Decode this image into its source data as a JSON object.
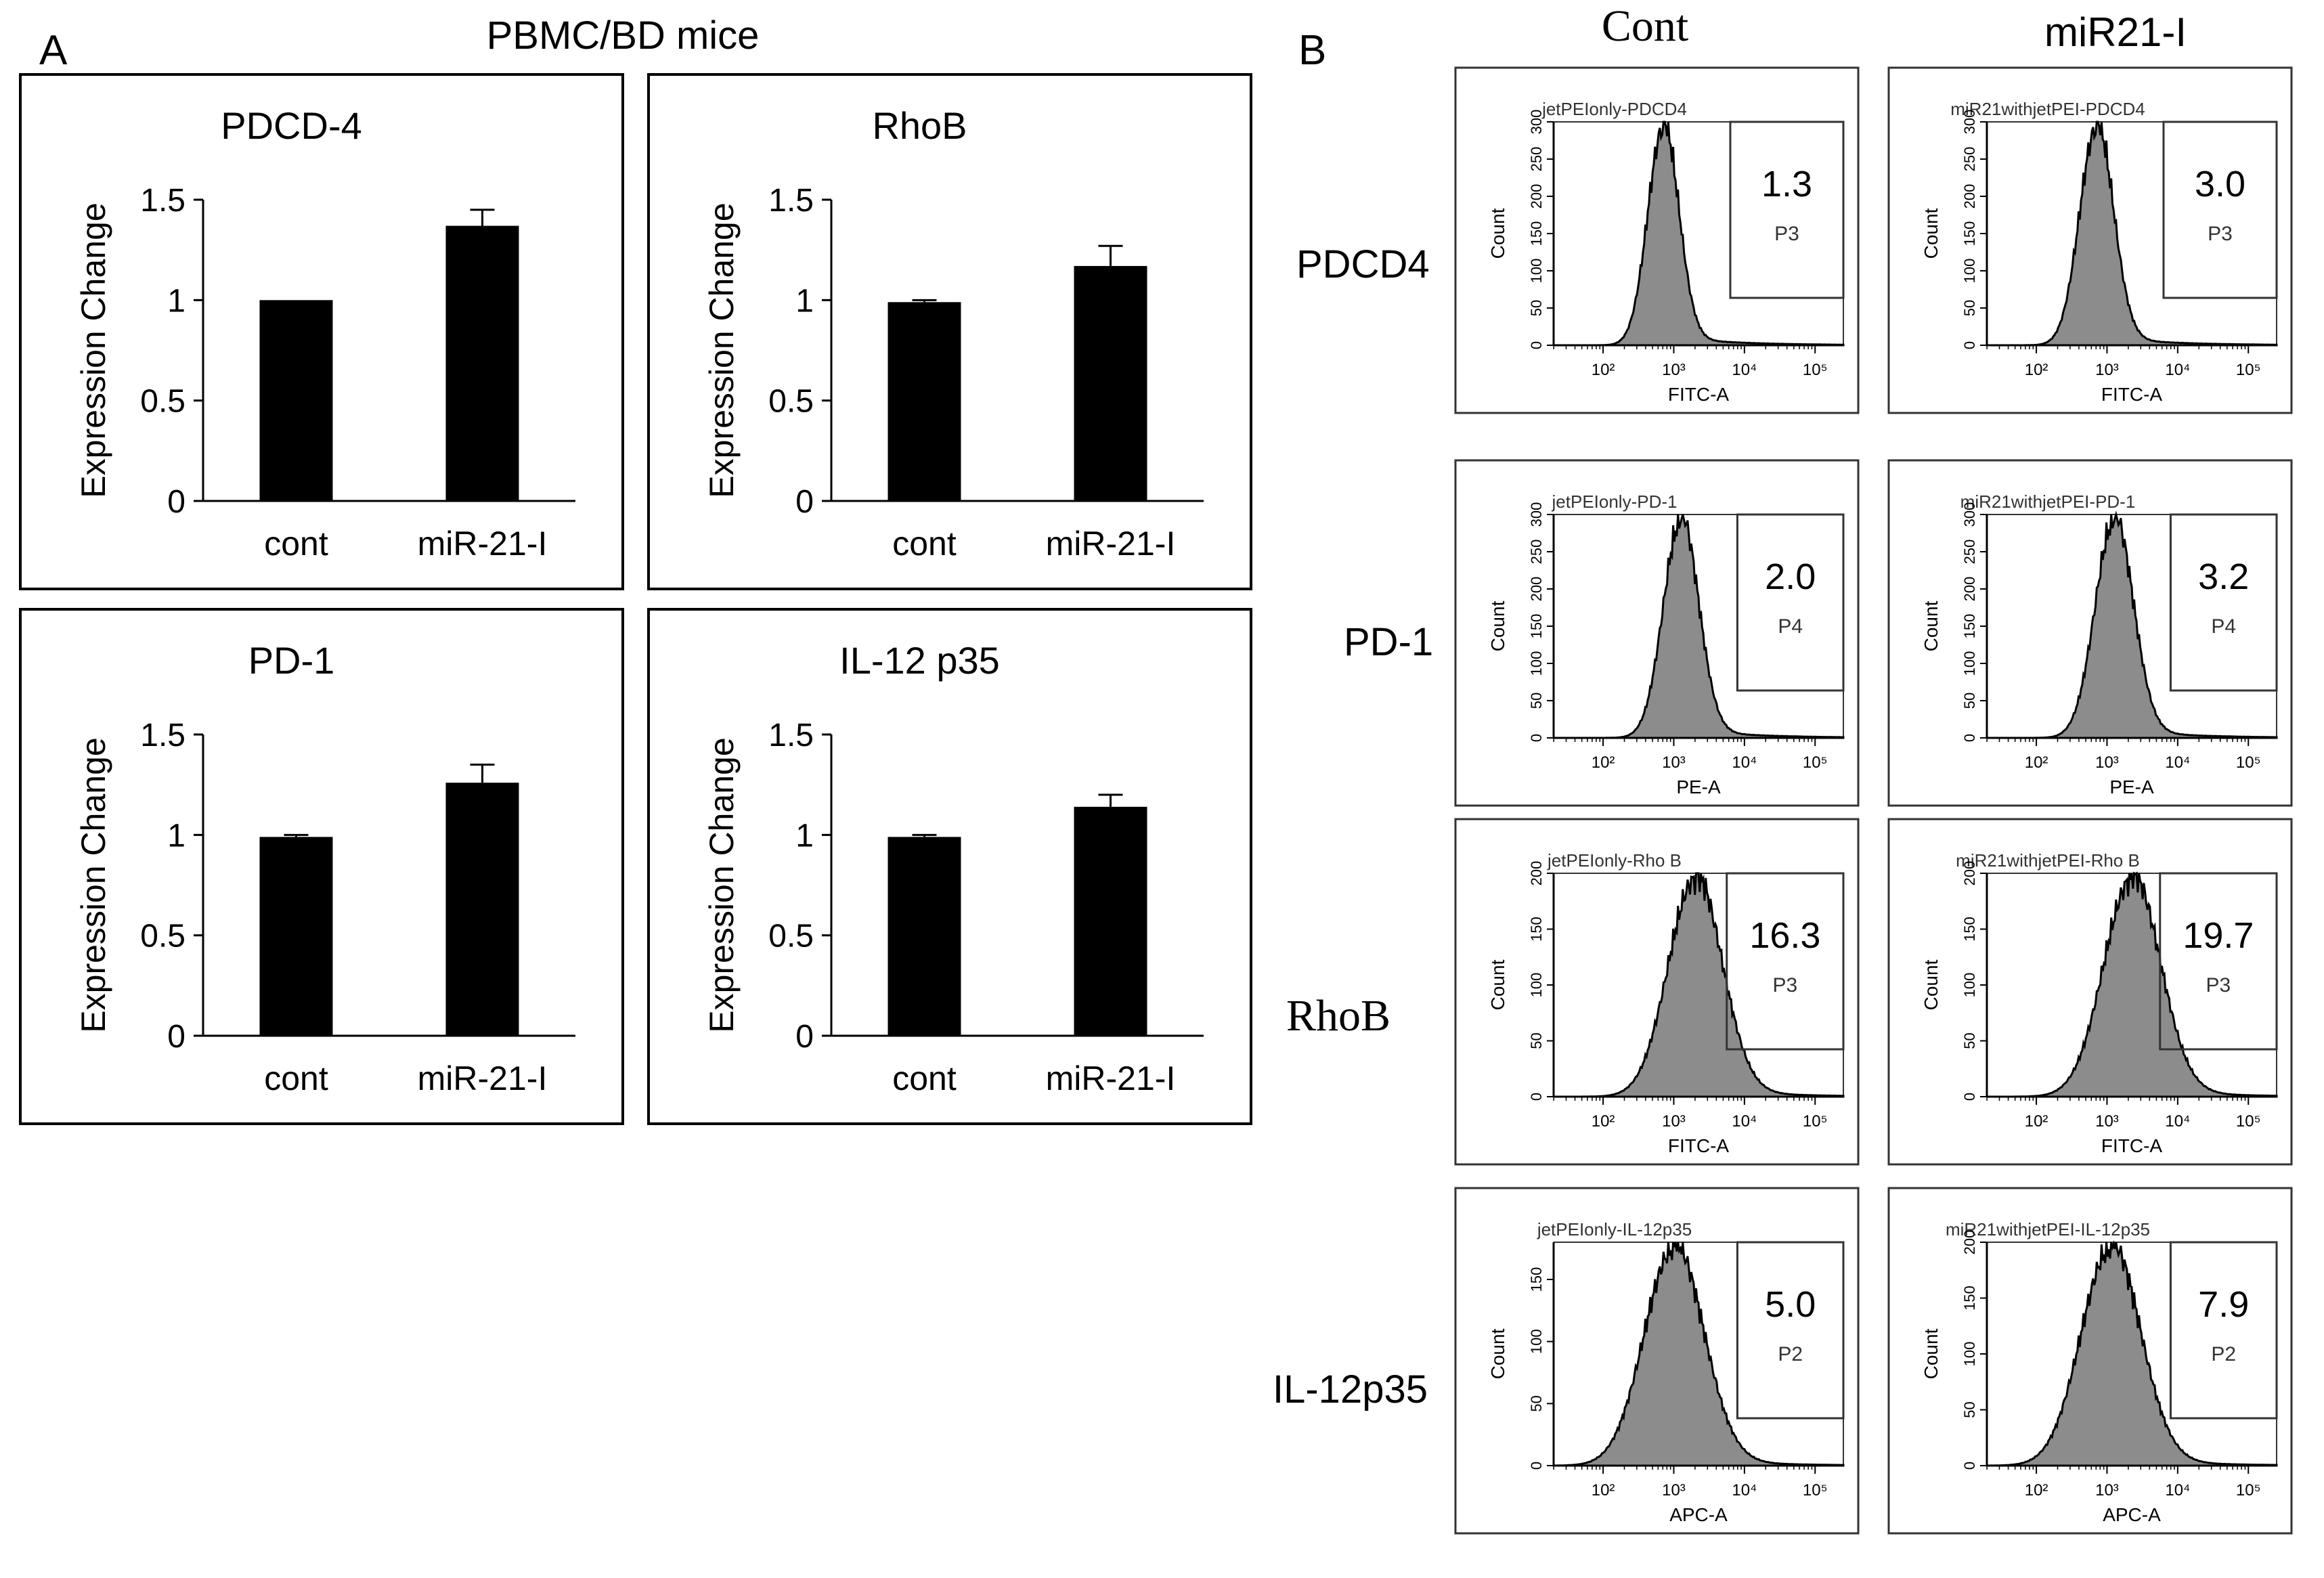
{
  "panel_a": {
    "letter": "A",
    "title": "PBMC/BD  mice",
    "y_ticks": [
      "0",
      "0.5",
      "1",
      "1.5"
    ]
  },
  "panel_b": {
    "letter": "B",
    "col_headers": [
      "Cont",
      "miR21-I"
    ],
    "row_labels": [
      "PDCD4",
      "PD-1",
      "RhoB",
      "IL-12p35"
    ]
  },
  "chart_data": [
    {
      "type": "bar",
      "title": "PDCD-4",
      "categories": [
        "cont",
        "miR-21-I"
      ],
      "values": [
        1.0,
        1.37
      ],
      "errors": [
        0.0,
        0.08
      ],
      "ylabel": "Expression Change",
      "ylim": [
        0,
        1.5
      ],
      "yticks": [
        0,
        0.5,
        1,
        1.5
      ]
    },
    {
      "type": "bar",
      "title": "RhoB",
      "categories": [
        "cont",
        "miR-21-I"
      ],
      "values": [
        0.99,
        1.17
      ],
      "errors": [
        0.01,
        0.1
      ],
      "ylabel": "Expression Change",
      "ylim": [
        0,
        1.5
      ],
      "yticks": [
        0,
        0.5,
        1,
        1.5
      ]
    },
    {
      "type": "bar",
      "title": "PD-1",
      "categories": [
        "cont",
        "miR-21-I"
      ],
      "values": [
        0.99,
        1.26
      ],
      "errors": [
        0.01,
        0.09
      ],
      "ylabel": "Expression Change",
      "ylim": [
        0,
        1.5
      ],
      "yticks": [
        0,
        0.5,
        1,
        1.5
      ]
    },
    {
      "type": "bar",
      "title": "IL-12 p35",
      "categories": [
        "cont",
        "miR-21-I"
      ],
      "values": [
        0.99,
        1.14
      ],
      "errors": [
        0.01,
        0.06
      ],
      "ylabel": "Expression Change",
      "ylim": [
        0,
        1.5
      ],
      "yticks": [
        0,
        0.5,
        1,
        1.5
      ]
    },
    {
      "type": "histogram",
      "title": "jetPEIonly-PDCD4",
      "marker": "FITC-A",
      "ylabel": "Count",
      "x_ticks": [
        "10²",
        "10³",
        "10⁴",
        "10⁵"
      ],
      "y_ticks": [
        "0",
        "50",
        "100",
        "150",
        "200",
        "250",
        "300"
      ],
      "y_max": 300,
      "gate": "P3",
      "percent": "1.3",
      "peak_log": 2.85,
      "spread": 0.22,
      "gate_start_log": 3.8
    },
    {
      "type": "histogram",
      "title": "miR21withjetPEI-PDCD4",
      "marker": "FITC-A",
      "ylabel": "Count",
      "x_ticks": [
        "10²",
        "10³",
        "10⁴",
        "10⁵"
      ],
      "y_ticks": [
        "0",
        "50",
        "100",
        "150",
        "200",
        "250",
        "300"
      ],
      "y_max": 300,
      "gate": "P3",
      "percent": "3.0",
      "peak_log": 2.85,
      "spread": 0.24,
      "gate_start_log": 3.8
    },
    {
      "type": "histogram",
      "title": "jetPEIonly-PD-1",
      "marker": "PE-A",
      "ylabel": "Count",
      "x_ticks": [
        "10²",
        "10³",
        "10⁴",
        "10⁵"
      ],
      "y_ticks": [
        "0",
        "50",
        "100",
        "150",
        "200",
        "250",
        "300"
      ],
      "y_max": 300,
      "gate": "P4",
      "percent": "2.0",
      "peak_log": 3.1,
      "spread": 0.25,
      "gate_start_log": 3.9
    },
    {
      "type": "histogram",
      "title": "miR21withjetPEI-PD-1",
      "marker": "PE-A",
      "ylabel": "Count",
      "x_ticks": [
        "10²",
        "10³",
        "10⁴",
        "10⁵"
      ],
      "y_ticks": [
        "0",
        "50",
        "100",
        "150",
        "200",
        "250",
        "300"
      ],
      "y_max": 300,
      "gate": "P4",
      "percent": "3.2",
      "peak_log": 3.1,
      "spread": 0.27,
      "gate_start_log": 3.9
    },
    {
      "type": "histogram",
      "title": "jetPEIonly-Rho B",
      "marker": "FITC-A",
      "ylabel": "Count",
      "x_ticks": [
        "10²",
        "10³",
        "10⁴",
        "10⁵"
      ],
      "y_ticks": [
        "0",
        "50",
        "100",
        "150",
        "200"
      ],
      "y_max": 200,
      "gate": "P3",
      "percent": "16.3",
      "peak_log": 3.3,
      "spread": 0.38,
      "gate_start_log": 3.75
    },
    {
      "type": "histogram",
      "title": "miR21withjetPEI-Rho B",
      "marker": "FITC-A",
      "ylabel": "Count",
      "x_ticks": [
        "10²",
        "10³",
        "10⁴",
        "10⁵"
      ],
      "y_ticks": [
        "0",
        "50",
        "100",
        "150",
        "200"
      ],
      "y_max": 200,
      "gate": "P3",
      "percent": "19.7",
      "peak_log": 3.35,
      "spread": 0.4,
      "gate_start_log": 3.75
    },
    {
      "type": "histogram",
      "title": "jetPEIonly-IL-12p35",
      "marker": "APC-A",
      "ylabel": "Count",
      "x_ticks": [
        "10²",
        "10³",
        "10⁴",
        "10⁵"
      ],
      "y_ticks": [
        "0",
        "50",
        "100",
        "150"
      ],
      "y_max": 180,
      "gate": "P2",
      "percent": "5.0",
      "peak_log": 3.0,
      "spread": 0.42,
      "gate_start_log": 3.9
    },
    {
      "type": "histogram",
      "title": "miR21withjetPEI-IL-12p35",
      "marker": "APC-A",
      "ylabel": "Count",
      "x_ticks": [
        "10²",
        "10³",
        "10⁴",
        "10⁵"
      ],
      "y_ticks": [
        "0",
        "50",
        "100",
        "150",
        "200"
      ],
      "y_max": 200,
      "gate": "P2",
      "percent": "7.9",
      "peak_log": 3.05,
      "spread": 0.42,
      "gate_start_log": 3.9
    }
  ]
}
